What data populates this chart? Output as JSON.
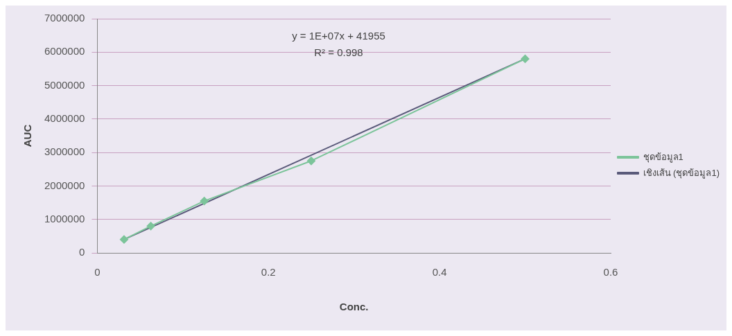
{
  "chart_data": {
    "type": "scatter",
    "xlabel": "Conc.",
    "ylabel": "AUC",
    "xlim": [
      0,
      0.6
    ],
    "xticks": [
      0,
      0.2,
      0.4,
      0.6
    ],
    "ylim": [
      0,
      7000000
    ],
    "yticks": [
      0,
      1000000,
      2000000,
      3000000,
      4000000,
      5000000,
      6000000,
      7000000
    ],
    "grid": "y",
    "legend": "right",
    "annotations": [
      "y = 1E+07x + 41955",
      "R² = 0.998"
    ],
    "series": [
      {
        "name": "ชุดข้อมูล1",
        "type": "line",
        "color": "#7cc49a",
        "marker": "diamond",
        "x": [
          0.03125,
          0.0625,
          0.125,
          0.25,
          0.5
        ],
        "values": [
          400000,
          800000,
          1550000,
          2750000,
          5800000
        ]
      },
      {
        "name": "เชิงเส้น (ชุดข้อมูล1)",
        "type": "line",
        "color": "#5a5a7a",
        "marker": "none",
        "x": [
          0.03125,
          0.5
        ],
        "values": [
          400000,
          5800000
        ]
      }
    ]
  }
}
